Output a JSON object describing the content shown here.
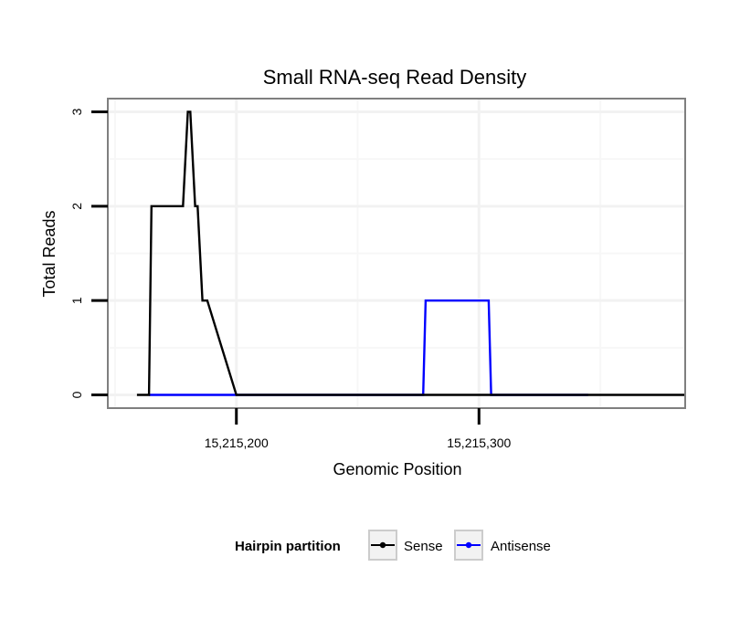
{
  "chart_data": {
    "type": "line",
    "title": "Small RNA-seq Read Density",
    "xlabel": "Genomic Position",
    "ylabel": "Total Reads",
    "xlim": [
      15215147,
      15215385
    ],
    "ylim": [
      -0.14,
      3.14
    ],
    "x_ticks": [
      {
        "value": 15215200,
        "label": "15,215,200"
      },
      {
        "value": 15215300,
        "label": "15,215,300"
      }
    ],
    "y_ticks": [
      {
        "value": 0,
        "label": "0"
      },
      {
        "value": 1,
        "label": "1"
      },
      {
        "value": 2,
        "label": "2"
      },
      {
        "value": 3,
        "label": "3"
      }
    ],
    "x_minor_grid": [
      15215150,
      15215250,
      15215350
    ],
    "y_minor_grid": [
      0.5,
      1.5,
      2.5
    ],
    "grid": true,
    "legend": {
      "title": "Hairpin partition",
      "position": "bottom"
    },
    "series": [
      {
        "name": "Sense",
        "color": "#000000",
        "x": [
          15215159,
          15215164,
          15215165,
          15215178,
          15215180,
          15215181,
          15215183,
          15215184,
          15215186,
          15215188,
          15215200,
          15215278,
          15215305,
          15215385
        ],
        "y": [
          0,
          0,
          2,
          2,
          3,
          3,
          2,
          2,
          1,
          1,
          0,
          0,
          0,
          0
        ]
      },
      {
        "name": "Antisense",
        "color": "#0000ff",
        "x": [
          15215164,
          15215201,
          15215277,
          15215278,
          15215304,
          15215305,
          15215345
        ],
        "y": [
          0,
          0,
          0,
          1,
          1,
          0,
          0
        ]
      }
    ]
  }
}
